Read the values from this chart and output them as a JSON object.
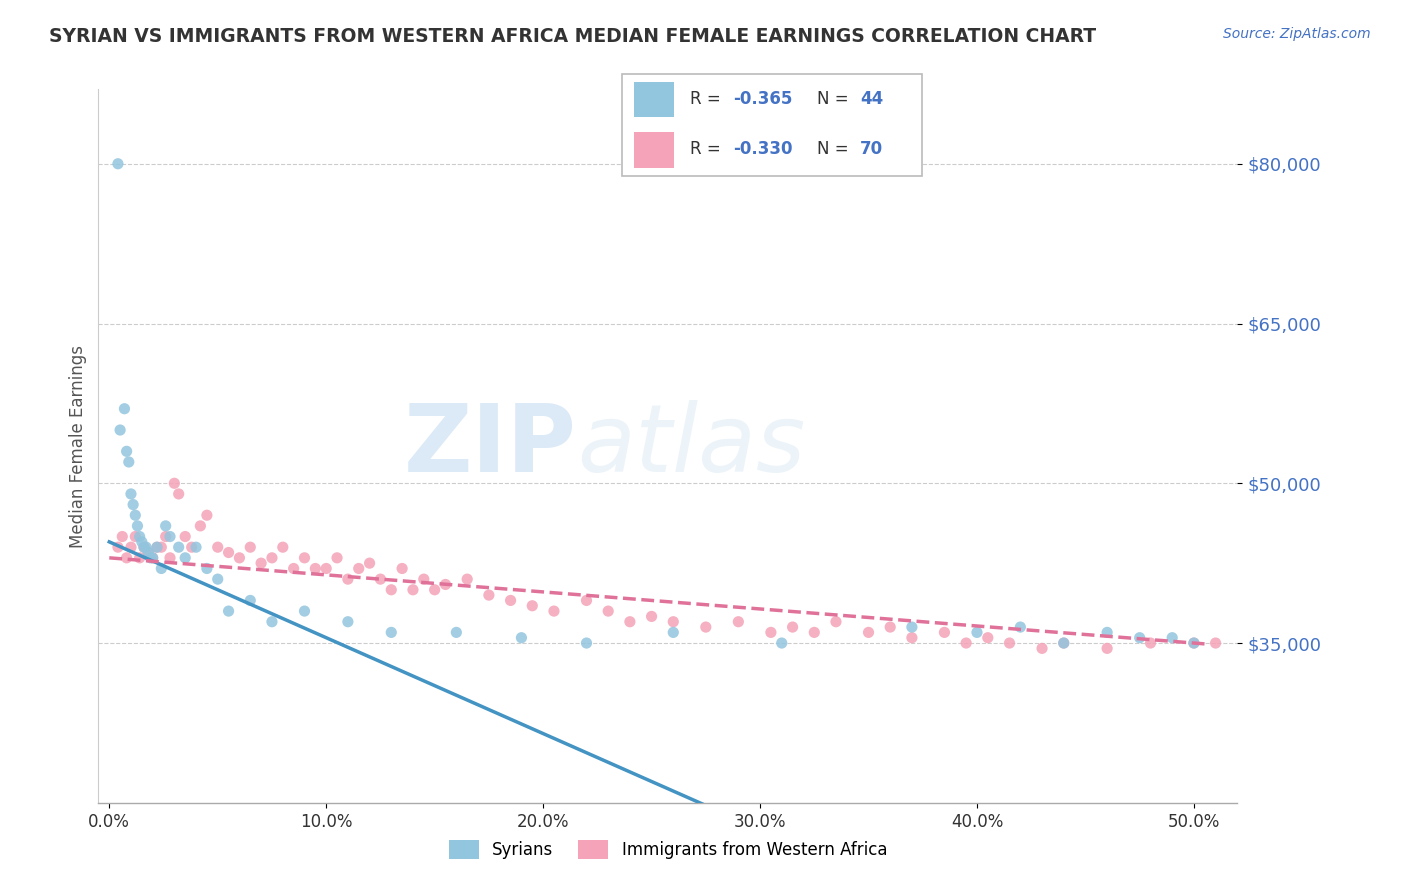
{
  "title": "SYRIAN VS IMMIGRANTS FROM WESTERN AFRICA MEDIAN FEMALE EARNINGS CORRELATION CHART",
  "source": "Source: ZipAtlas.com",
  "xlabel_ticks": [
    "0.0%",
    "10.0%",
    "20.0%",
    "30.0%",
    "40.0%",
    "50.0%"
  ],
  "xlabel_values": [
    0.0,
    10.0,
    20.0,
    30.0,
    40.0,
    50.0
  ],
  "ylabel": "Median Female Earnings",
  "yticks": [
    35000,
    50000,
    65000,
    80000
  ],
  "ytick_labels": [
    "$35,000",
    "$50,000",
    "$65,000",
    "$80,000"
  ],
  "ylim": [
    20000,
    87000
  ],
  "xlim": [
    -0.5,
    52.0
  ],
  "label1": "Syrians",
  "label2": "Immigrants from Western Africa",
  "color1": "#92c5de",
  "color2": "#f4a3b8",
  "trendline_color1": "#4393c3",
  "trendline_color2": "#e0729a",
  "watermark_zip": "ZIP",
  "watermark_atlas": "atlas",
  "title_color": "#333333",
  "axis_label_color": "#4472c4",
  "grid_color": "#cccccc",
  "syrians_x": [
    0.4,
    0.5,
    0.7,
    0.8,
    0.9,
    1.0,
    1.1,
    1.2,
    1.3,
    1.4,
    1.5,
    1.6,
    1.7,
    1.8,
    1.9,
    2.0,
    2.2,
    2.4,
    2.6,
    2.8,
    3.2,
    3.5,
    4.0,
    4.5,
    5.0,
    5.5,
    6.5,
    7.5,
    9.0,
    11.0,
    13.0,
    16.0,
    19.0,
    22.0,
    26.0,
    31.0,
    37.0,
    40.0,
    42.0,
    44.0,
    46.0,
    47.5,
    49.0,
    50.0
  ],
  "syrians_y": [
    80000,
    55000,
    57000,
    53000,
    52000,
    49000,
    48000,
    47000,
    46000,
    45000,
    44500,
    44000,
    44000,
    43500,
    43000,
    43000,
    44000,
    42000,
    46000,
    45000,
    44000,
    43000,
    44000,
    42000,
    41000,
    38000,
    39000,
    37000,
    38000,
    37000,
    36000,
    36000,
    35500,
    35000,
    36000,
    35000,
    36500,
    36000,
    36500,
    35000,
    36000,
    35500,
    35500,
    35000
  ],
  "waf_x": [
    0.4,
    0.6,
    0.8,
    1.0,
    1.2,
    1.4,
    1.6,
    1.8,
    2.0,
    2.2,
    2.4,
    2.6,
    2.8,
    3.0,
    3.2,
    3.5,
    3.8,
    4.2,
    4.5,
    5.0,
    5.5,
    6.0,
    6.5,
    7.0,
    7.5,
    8.0,
    8.5,
    9.0,
    9.5,
    10.0,
    10.5,
    11.0,
    11.5,
    12.0,
    12.5,
    13.0,
    13.5,
    14.0,
    14.5,
    15.0,
    15.5,
    16.5,
    17.5,
    18.5,
    19.5,
    20.5,
    22.0,
    23.0,
    24.0,
    25.0,
    26.0,
    27.5,
    29.0,
    30.5,
    31.5,
    32.5,
    33.5,
    35.0,
    36.0,
    37.0,
    38.5,
    39.5,
    40.5,
    41.5,
    43.0,
    44.0,
    46.0,
    48.0,
    50.0,
    51.0
  ],
  "waf_y": [
    44000,
    45000,
    43000,
    44000,
    45000,
    43000,
    44000,
    43500,
    43000,
    44000,
    44000,
    45000,
    43000,
    50000,
    49000,
    45000,
    44000,
    46000,
    47000,
    44000,
    43500,
    43000,
    44000,
    42500,
    43000,
    44000,
    42000,
    43000,
    42000,
    42000,
    43000,
    41000,
    42000,
    42500,
    41000,
    40000,
    42000,
    40000,
    41000,
    40000,
    40500,
    41000,
    39500,
    39000,
    38500,
    38000,
    39000,
    38000,
    37000,
    37500,
    37000,
    36500,
    37000,
    36000,
    36500,
    36000,
    37000,
    36000,
    36500,
    35500,
    36000,
    35000,
    35500,
    35000,
    34500,
    35000,
    34500,
    35000,
    35000,
    35000
  ],
  "trendline_x_start": 0.0,
  "trendline_x_end": 50.5,
  "syrians_intercept": 44500,
  "syrians_slope": -900,
  "waf_intercept": 43000,
  "waf_slope": -160
}
